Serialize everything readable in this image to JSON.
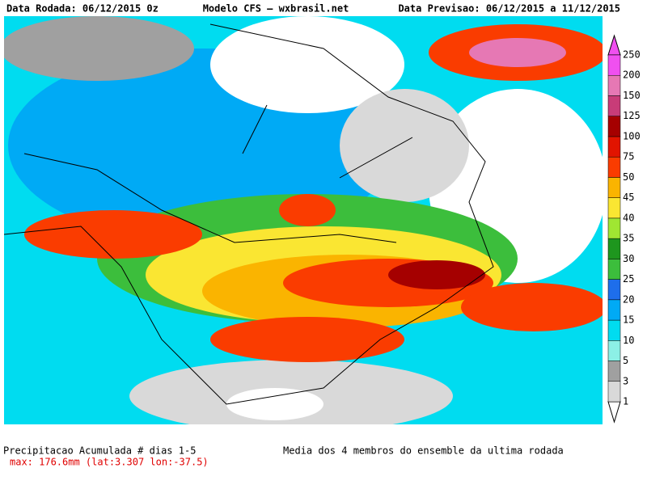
{
  "header": {
    "left": "Data Rodada: 06/12/2015 0z",
    "center": "Modelo CFS — wxbrasil.net",
    "right": "Data Previsao: 06/12/2015 a 11/12/2015"
  },
  "colorbar": {
    "levels": [
      1,
      3,
      5,
      10,
      15,
      20,
      25,
      30,
      35,
      40,
      45,
      50,
      75,
      100,
      125,
      150,
      200,
      250
    ],
    "colors": [
      "#d9d9d9",
      "#a0a0a0",
      "#8cf0e6",
      "#00dcf0",
      "#00aaf5",
      "#1e6eeb",
      "#3cbe3c",
      "#1e961e",
      "#a0e632",
      "#fae632",
      "#fab400",
      "#fa3c00",
      "#e11400",
      "#a50000",
      "#c83c78",
      "#e678b4",
      "#f050f0"
    ]
  },
  "footer": {
    "title": "Precipitacao Acumulada # dias 1-5",
    "max": "max: 176.6mm (lat:3.307 lon:-37.5)",
    "note": "Media dos 4 membros do ensemble da ultima rodada"
  }
}
